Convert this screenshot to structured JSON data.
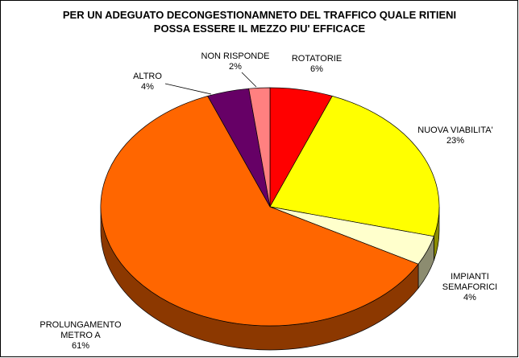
{
  "chart_data": {
    "type": "pie",
    "title": "PER UN ADEGUATO DECONGESTIONAMNETO DEL TRAFFICO QUALE RITIENI POSSA ESSERE IL MEZZO PIU' EFFICACE",
    "categories": [
      "ROTATORIE",
      "NUOVA VIABILITA'",
      "IMPIANTI SEMAFORICI",
      "PROLUNGAMENTO METRO A",
      "ALTRO",
      "NON RISPONDE"
    ],
    "values": [
      6,
      23,
      4,
      61,
      4,
      2
    ],
    "value_labels": [
      "6%",
      "23%",
      "4%",
      "61%",
      "4%",
      "2%"
    ],
    "colors": [
      "#ff0000",
      "#ffff00",
      "#ffffcc",
      "#ff6600",
      "#660066",
      "#ff8080"
    ]
  }
}
